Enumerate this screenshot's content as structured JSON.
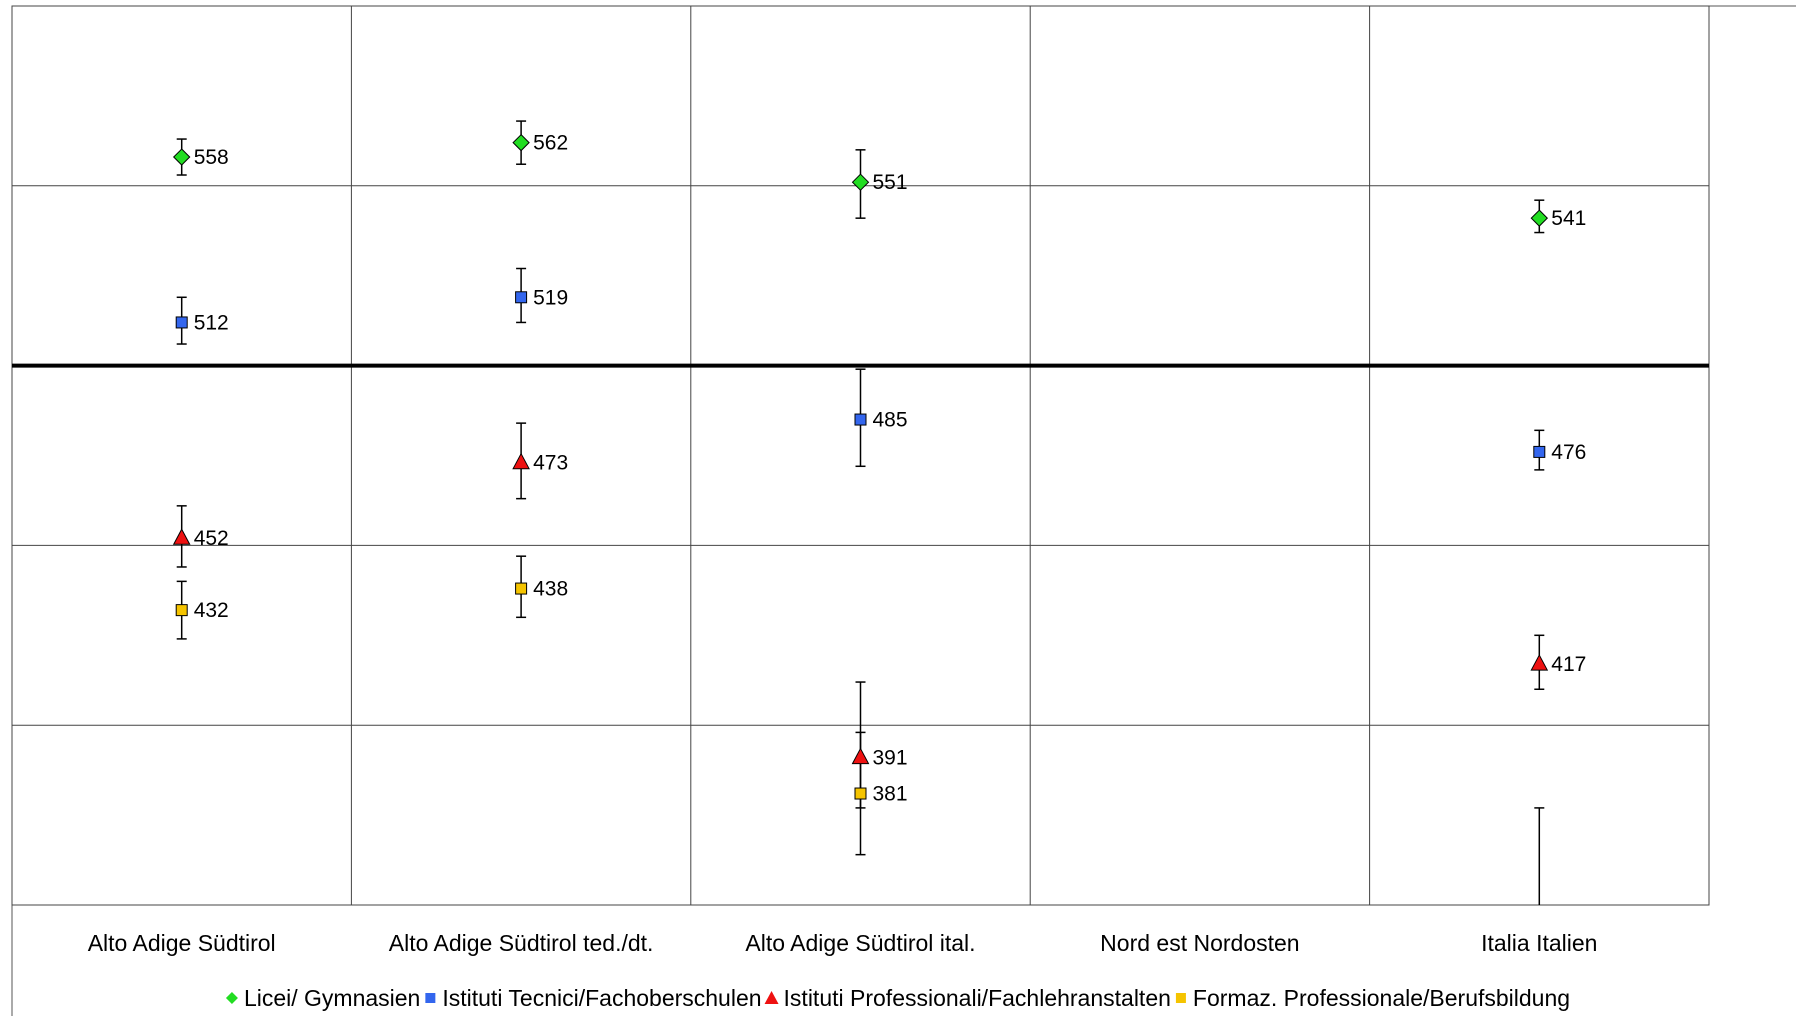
{
  "chart_data": {
    "type": "scatter",
    "title": "",
    "xlabel": "",
    "ylabel": "",
    "ylim": [
      350,
      600
    ],
    "grid": true,
    "legend_position": "bottom",
    "reference_value": 500,
    "categories": [
      "Alto Adige Südtirol",
      "Alto Adige Südtirol ted./dt.",
      "Alto Adige Südtirol ital.",
      "Nord est Nordosten",
      "Italia Italien"
    ],
    "series": [
      {
        "name": "Licei/ Gymnasien",
        "marker": "diamond",
        "color": "#22dd22",
        "values": [
          558,
          562,
          551,
          null,
          541
        ],
        "error_low": [
          553,
          556,
          541,
          null,
          537
        ],
        "error_high": [
          563,
          568,
          560,
          null,
          546
        ]
      },
      {
        "name": "Istituti Tecnici/Fachoberschulen",
        "marker": "square",
        "color": "#3366ee",
        "values": [
          512,
          519,
          485,
          null,
          476
        ],
        "error_low": [
          506,
          512,
          472,
          null,
          471
        ],
        "error_high": [
          519,
          527,
          499,
          null,
          482
        ]
      },
      {
        "name": "Istituti Professionali/Fachlehranstalten",
        "marker": "triangle",
        "color": "#ee1111",
        "values": [
          452,
          473,
          391,
          null,
          417
        ],
        "error_low": [
          444,
          463,
          377,
          null,
          410
        ],
        "error_high": [
          461,
          484,
          412,
          null,
          425
        ]
      },
      {
        "name": "Formaz. Professionale/Berufsbildung",
        "marker": "square",
        "color": "#f5c400",
        "values": [
          432,
          438,
          381,
          null,
          null
        ],
        "error_low": [
          424,
          430,
          364,
          null,
          null
        ],
        "error_high": [
          440,
          447,
          398,
          null,
          null
        ]
      }
    ],
    "extra_bars": [
      {
        "category": "Italia Italien",
        "low": 350,
        "high": 377
      }
    ]
  }
}
